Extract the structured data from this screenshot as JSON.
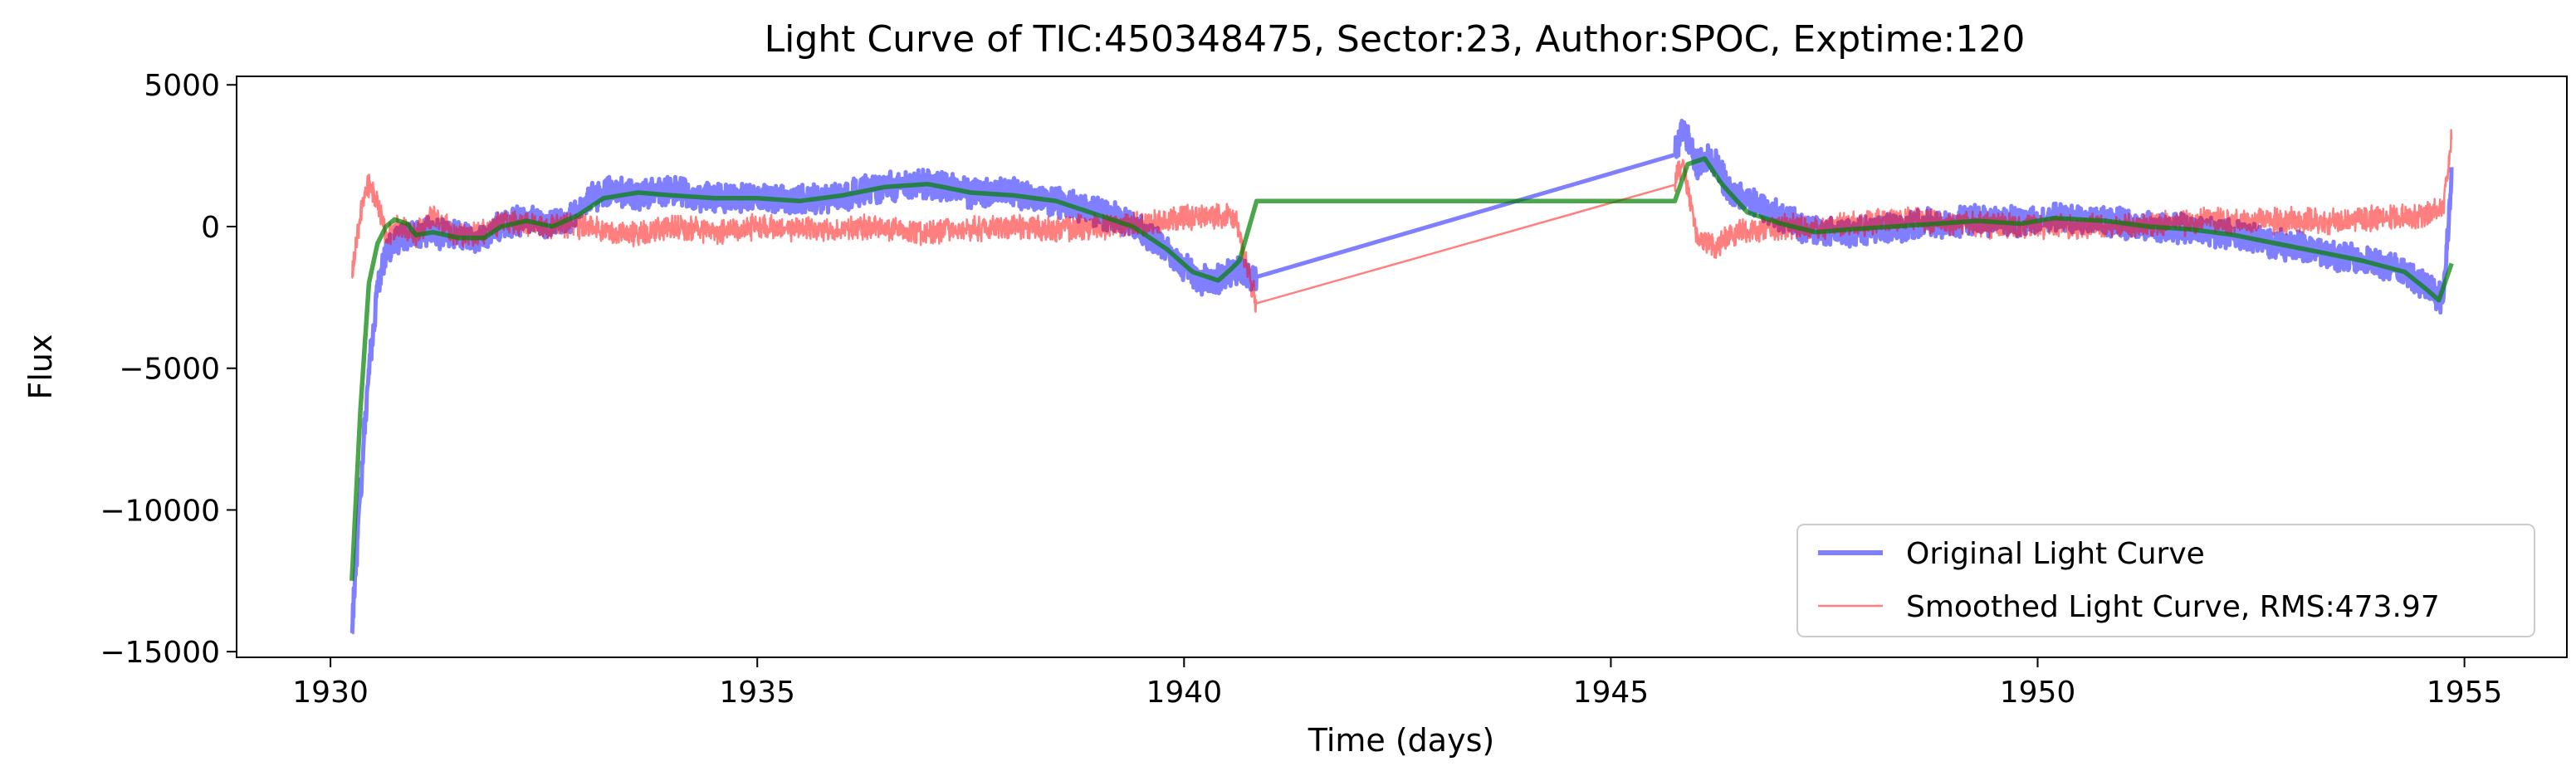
{
  "chart_data": {
    "type": "line",
    "title": "Light Curve of TIC:450348475, Sector:23, Author:SPOC, Exptime:120",
    "xlabel": "Time (days)",
    "ylabel": "Flux",
    "xlim": [
      1928.9,
      1956.2
    ],
    "ylim": [
      -15200,
      5300
    ],
    "x_ticks": [
      1930,
      1935,
      1940,
      1945,
      1950,
      1955
    ],
    "y_ticks": [
      5000,
      0,
      -5000,
      -10000,
      -15000
    ],
    "y_tick_labels": [
      "5000",
      "0",
      "−5000",
      "−10000",
      "−15000"
    ],
    "grid": false,
    "legend_position": "lower-right",
    "series": [
      {
        "name": "Original Light Curve",
        "color": "#0000ff",
        "opacity": 0.5,
        "noise": 450,
        "points": [
          [
            1930.25,
            -14200
          ],
          [
            1930.35,
            -9500
          ],
          [
            1930.45,
            -5000
          ],
          [
            1930.55,
            -2200
          ],
          [
            1930.65,
            -900
          ],
          [
            1930.8,
            -400
          ],
          [
            1931.0,
            -300
          ],
          [
            1931.2,
            -200
          ],
          [
            1931.5,
            -300
          ],
          [
            1931.7,
            -500
          ],
          [
            1932.0,
            0
          ],
          [
            1932.3,
            300
          ],
          [
            1932.5,
            100
          ],
          [
            1932.8,
            200
          ],
          [
            1933.0,
            1000
          ],
          [
            1933.3,
            1200
          ],
          [
            1933.6,
            1100
          ],
          [
            1934.0,
            1300
          ],
          [
            1934.5,
            1000
          ],
          [
            1935.0,
            1000
          ],
          [
            1935.5,
            900
          ],
          [
            1936.0,
            1100
          ],
          [
            1936.5,
            1400
          ],
          [
            1937.0,
            1500
          ],
          [
            1937.5,
            1200
          ],
          [
            1938.0,
            1200
          ],
          [
            1938.5,
            900
          ],
          [
            1939.0,
            500
          ],
          [
            1939.4,
            100
          ],
          [
            1939.7,
            -600
          ],
          [
            1940.0,
            -1400
          ],
          [
            1940.2,
            -1900
          ],
          [
            1940.4,
            -1900
          ],
          [
            1940.6,
            -1500
          ],
          [
            1940.85,
            -1900
          ],
          [
            1945.75,
            2600
          ],
          [
            1945.85,
            3600
          ],
          [
            1946.0,
            2200
          ],
          [
            1946.2,
            2400
          ],
          [
            1946.4,
            1200
          ],
          [
            1946.8,
            600
          ],
          [
            1947.3,
            -100
          ],
          [
            1947.8,
            -200
          ],
          [
            1948.3,
            0
          ],
          [
            1948.8,
            100
          ],
          [
            1949.3,
            200
          ],
          [
            1949.8,
            200
          ],
          [
            1950.3,
            300
          ],
          [
            1950.8,
            200
          ],
          [
            1951.3,
            0
          ],
          [
            1951.8,
            -100
          ],
          [
            1952.3,
            -300
          ],
          [
            1952.8,
            -600
          ],
          [
            1953.3,
            -900
          ],
          [
            1953.8,
            -1200
          ],
          [
            1954.3,
            -1600
          ],
          [
            1954.6,
            -2200
          ],
          [
            1954.75,
            -2600
          ],
          [
            1954.85,
            1800
          ]
        ]
      },
      {
        "name": "Smoothed Light Curve, RMS:473.97",
        "color": "#ff0000",
        "opacity": 0.5,
        "noise": 380,
        "points": [
          [
            1930.25,
            -1800
          ],
          [
            1930.35,
            500
          ],
          [
            1930.45,
            1500
          ],
          [
            1930.55,
            900
          ],
          [
            1930.65,
            -300
          ],
          [
            1930.8,
            0
          ],
          [
            1931.0,
            -300
          ],
          [
            1931.2,
            400
          ],
          [
            1931.5,
            -300
          ],
          [
            1931.8,
            -200
          ],
          [
            1932.0,
            200
          ],
          [
            1932.5,
            0
          ],
          [
            1933.0,
            0
          ],
          [
            1933.5,
            -300
          ],
          [
            1934.0,
            0
          ],
          [
            1934.5,
            -200
          ],
          [
            1935.0,
            0
          ],
          [
            1935.5,
            -100
          ],
          [
            1936.0,
            -100
          ],
          [
            1936.5,
            0
          ],
          [
            1937.0,
            -200
          ],
          [
            1937.5,
            -100
          ],
          [
            1938.0,
            0
          ],
          [
            1938.5,
            -100
          ],
          [
            1939.0,
            0
          ],
          [
            1939.5,
            100
          ],
          [
            1940.0,
            300
          ],
          [
            1940.3,
            400
          ],
          [
            1940.6,
            300
          ],
          [
            1940.85,
            -2800
          ],
          [
            1945.75,
            1700
          ],
          [
            1945.85,
            2200
          ],
          [
            1946.0,
            -300
          ],
          [
            1946.2,
            -700
          ],
          [
            1946.5,
            -200
          ],
          [
            1947.0,
            0
          ],
          [
            1947.5,
            0
          ],
          [
            1948.0,
            100
          ],
          [
            1948.5,
            300
          ],
          [
            1949.0,
            100
          ],
          [
            1949.5,
            0
          ],
          [
            1950.0,
            0
          ],
          [
            1950.5,
            0
          ],
          [
            1951.0,
            0
          ],
          [
            1951.5,
            100
          ],
          [
            1952.0,
            200
          ],
          [
            1952.5,
            200
          ],
          [
            1953.0,
            200
          ],
          [
            1953.5,
            200
          ],
          [
            1954.0,
            300
          ],
          [
            1954.5,
            400
          ],
          [
            1954.75,
            600
          ],
          [
            1954.85,
            3200
          ]
        ]
      },
      {
        "name": "",
        "color": "#008000",
        "opacity": 0.7,
        "noise": 0,
        "points": [
          [
            1930.25,
            -12500
          ],
          [
            1930.35,
            -6500
          ],
          [
            1930.45,
            -2000
          ],
          [
            1930.55,
            -600
          ],
          [
            1930.65,
            0
          ],
          [
            1930.75,
            250
          ],
          [
            1930.9,
            100
          ],
          [
            1931.0,
            -300
          ],
          [
            1931.2,
            -200
          ],
          [
            1931.5,
            -400
          ],
          [
            1931.8,
            -400
          ],
          [
            1932.0,
            0
          ],
          [
            1932.3,
            200
          ],
          [
            1932.6,
            0
          ],
          [
            1932.9,
            400
          ],
          [
            1933.2,
            1000
          ],
          [
            1933.6,
            1200
          ],
          [
            1934.0,
            1100
          ],
          [
            1934.5,
            1000
          ],
          [
            1935.0,
            1000
          ],
          [
            1935.5,
            900
          ],
          [
            1936.0,
            1100
          ],
          [
            1936.5,
            1400
          ],
          [
            1937.0,
            1500
          ],
          [
            1937.5,
            1200
          ],
          [
            1938.0,
            1100
          ],
          [
            1938.5,
            900
          ],
          [
            1939.0,
            400
          ],
          [
            1939.4,
            0
          ],
          [
            1939.8,
            -800
          ],
          [
            1940.1,
            -1600
          ],
          [
            1940.4,
            -1900
          ],
          [
            1940.55,
            -1500
          ],
          [
            1940.65,
            -1200
          ],
          [
            1940.85,
            900
          ],
          [
            1945.75,
            900
          ],
          [
            1945.9,
            2200
          ],
          [
            1946.1,
            2400
          ],
          [
            1946.3,
            1500
          ],
          [
            1946.6,
            500
          ],
          [
            1947.0,
            100
          ],
          [
            1947.4,
            -200
          ],
          [
            1947.8,
            -100
          ],
          [
            1948.3,
            0
          ],
          [
            1948.8,
            100
          ],
          [
            1949.3,
            200
          ],
          [
            1949.8,
            100
          ],
          [
            1950.2,
            300
          ],
          [
            1950.8,
            200
          ],
          [
            1951.3,
            0
          ],
          [
            1951.8,
            -100
          ],
          [
            1952.3,
            -300
          ],
          [
            1952.8,
            -600
          ],
          [
            1953.3,
            -900
          ],
          [
            1953.8,
            -1200
          ],
          [
            1954.3,
            -1600
          ],
          [
            1954.55,
            -2200
          ],
          [
            1954.7,
            -2600
          ],
          [
            1954.85,
            -1300
          ]
        ]
      }
    ]
  }
}
